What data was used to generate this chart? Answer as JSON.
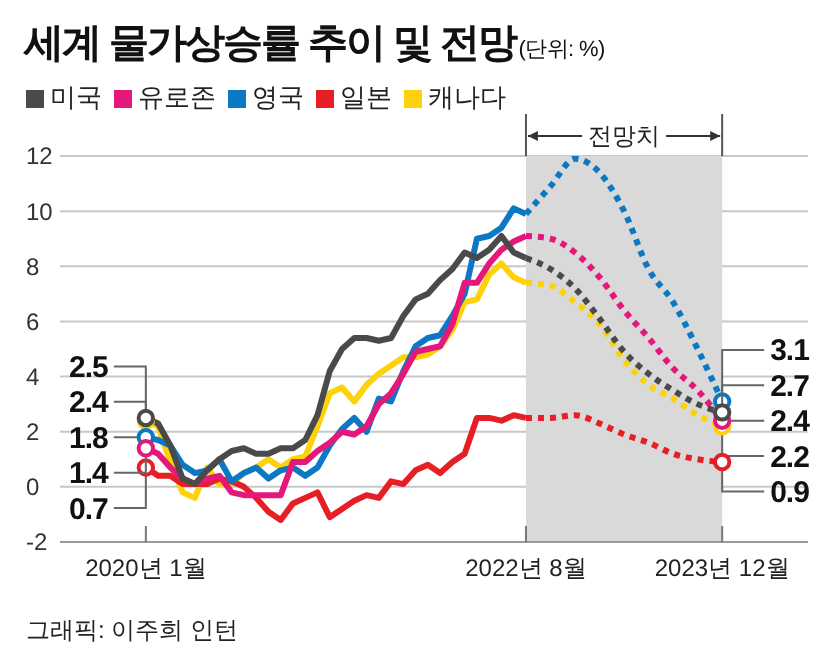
{
  "chart_data": {
    "type": "line",
    "title": "세계 물가상승률 추이 및 전망",
    "subtitle": "(단위: %)",
    "annotations": [
      "그래픽: 이주희 인턴"
    ],
    "xlim": [
      "2019-06",
      "2024-07"
    ],
    "xticks": [
      {
        "value": "2020-01",
        "label": "2020년 1월"
      },
      {
        "value": "2022-08",
        "label": "2022년 8월"
      },
      {
        "value": "2023-12",
        "label": "2023년 12월"
      }
    ],
    "ylim": [
      -2,
      12
    ],
    "yticks": [
      -2,
      0,
      2,
      4,
      6,
      8,
      10,
      12
    ],
    "grid": "y",
    "legend": "top left",
    "bands": [
      {
        "axis": "x",
        "from": "2022-08",
        "to": "2023-12",
        "label": "전망치",
        "color": "#d9d9d9"
      }
    ],
    "x": [
      "2020-01",
      "2020-02",
      "2020-03",
      "2020-04",
      "2020-05",
      "2020-06",
      "2020-07",
      "2020-08",
      "2020-09",
      "2020-10",
      "2020-11",
      "2020-12",
      "2021-01",
      "2021-02",
      "2021-03",
      "2021-04",
      "2021-05",
      "2021-06",
      "2021-07",
      "2021-08",
      "2021-09",
      "2021-10",
      "2021-11",
      "2021-12",
      "2022-01",
      "2022-02",
      "2022-03",
      "2022-04",
      "2022-05",
      "2022-06",
      "2022-07",
      "2022-08"
    ],
    "series": [
      {
        "name": "미국",
        "color": "#4a4a4a",
        "values": [
          2.5,
          2.3,
          1.5,
          0.3,
          0.1,
          0.6,
          1.0,
          1.3,
          1.4,
          1.2,
          1.2,
          1.4,
          1.4,
          1.7,
          2.6,
          4.2,
          5.0,
          5.4,
          5.4,
          5.3,
          5.4,
          6.2,
          6.8,
          7.0,
          7.5,
          7.9,
          8.5,
          8.3,
          8.6,
          9.1,
          8.5,
          8.3
        ],
        "value_labels": [
          "2.5",
          null,
          null,
          null,
          null,
          null,
          null,
          null,
          null,
          null,
          null,
          null,
          null,
          null,
          null,
          null,
          null,
          null,
          null,
          null,
          null,
          null,
          null,
          null,
          null,
          null,
          null,
          null,
          null,
          null,
          null,
          null
        ]
      },
      {
        "name": "유로존",
        "color": "#e5177b",
        "values": [
          1.4,
          1.2,
          0.7,
          0.3,
          0.1,
          0.3,
          0.4,
          -0.2,
          -0.3,
          -0.3,
          -0.3,
          -0.3,
          0.9,
          0.9,
          1.3,
          1.6,
          2.0,
          1.9,
          2.2,
          3.0,
          3.4,
          4.1,
          4.9,
          5.0,
          5.1,
          5.9,
          7.4,
          7.4,
          8.1,
          8.6,
          8.9,
          9.1
        ],
        "value_labels": [
          "1.4",
          null,
          null,
          null,
          null,
          null,
          null,
          null,
          null,
          null,
          null,
          null,
          null,
          null,
          null,
          null,
          null,
          null,
          null,
          null,
          null,
          null,
          null,
          null,
          null,
          null,
          null,
          null,
          null,
          null,
          null,
          null
        ]
      },
      {
        "name": "영국",
        "color": "#0a78c2",
        "values": [
          1.8,
          1.7,
          1.5,
          0.8,
          0.5,
          0.6,
          1.0,
          0.2,
          0.5,
          0.7,
          0.3,
          0.6,
          0.7,
          0.4,
          0.7,
          1.5,
          2.1,
          2.5,
          2.0,
          3.2,
          3.1,
          4.2,
          5.1,
          5.4,
          5.5,
          6.2,
          7.0,
          9.0,
          9.1,
          9.4,
          10.1,
          9.9
        ],
        "value_labels": [
          "1.8",
          null,
          null,
          null,
          null,
          null,
          null,
          null,
          null,
          null,
          null,
          null,
          null,
          null,
          null,
          null,
          null,
          null,
          null,
          null,
          null,
          null,
          null,
          null,
          null,
          null,
          null,
          null,
          null,
          null,
          null,
          null
        ]
      },
      {
        "name": "일본",
        "color": "#e61f26",
        "values": [
          0.7,
          0.4,
          0.4,
          0.1,
          0.1,
          0.1,
          0.3,
          0.2,
          0.0,
          -0.4,
          -0.9,
          -1.2,
          -0.6,
          -0.4,
          -0.2,
          -1.1,
          -0.8,
          -0.5,
          -0.3,
          -0.4,
          0.2,
          0.1,
          0.6,
          0.8,
          0.5,
          0.9,
          1.2,
          2.5,
          2.5,
          2.4,
          2.6,
          2.5
        ],
        "value_labels": [
          "0.7",
          null,
          null,
          null,
          null,
          null,
          null,
          null,
          null,
          null,
          null,
          null,
          null,
          null,
          null,
          null,
          null,
          null,
          null,
          null,
          null,
          null,
          null,
          null,
          null,
          null,
          null,
          null,
          null,
          null,
          null,
          null
        ]
      },
      {
        "name": "캐나다",
        "color": "#fdd20a",
        "values": [
          2.4,
          2.2,
          0.9,
          -0.2,
          -0.4,
          0.7,
          0.1,
          0.1,
          0.5,
          0.7,
          1.0,
          0.7,
          1.0,
          1.1,
          2.2,
          3.4,
          3.6,
          3.1,
          3.7,
          4.1,
          4.4,
          4.7,
          4.7,
          4.8,
          5.1,
          5.7,
          6.7,
          6.8,
          7.7,
          8.1,
          7.6,
          7.4
        ],
        "value_labels": [
          "2.4",
          null,
          null,
          null,
          null,
          null,
          null,
          null,
          null,
          null,
          null,
          null,
          null,
          null,
          null,
          null,
          null,
          null,
          null,
          null,
          null,
          null,
          null,
          null,
          null,
          null,
          null,
          null,
          null,
          null,
          null,
          null
        ]
      },
      {
        "color": "#4a4a4a",
        "line_style": "dotted",
        "x": [
          "2022-08",
          "2022-10",
          "2022-12",
          "2023-02",
          "2023-04",
          "2023-06",
          "2023-08",
          "2023-10",
          "2023-12"
        ],
        "values": [
          8.3,
          7.9,
          7.2,
          6.1,
          4.9,
          4.1,
          3.5,
          3.0,
          2.7
        ],
        "value_labels": [
          null,
          null,
          null,
          null,
          null,
          null,
          null,
          null,
          "2.7"
        ]
      },
      {
        "color": "#e5177b",
        "line_style": "dotted",
        "x": [
          "2022-08",
          "2022-10",
          "2022-12",
          "2023-02",
          "2023-04",
          "2023-06",
          "2023-08",
          "2023-10",
          "2023-12"
        ],
        "values": [
          9.1,
          9.0,
          8.5,
          7.6,
          6.4,
          5.4,
          4.3,
          3.5,
          2.4
        ],
        "value_labels": [
          null,
          null,
          null,
          null,
          null,
          null,
          null,
          null,
          "2.4"
        ]
      },
      {
        "color": "#0a78c2",
        "line_style": "dotted",
        "x": [
          "2022-08",
          "2022-10",
          "2022-12",
          "2023-02",
          "2023-04",
          "2023-06",
          "2023-08",
          "2023-10",
          "2023-12"
        ],
        "values": [
          9.9,
          10.9,
          11.9,
          11.4,
          10.0,
          7.9,
          6.7,
          5.0,
          3.1
        ],
        "value_labels": [
          null,
          null,
          null,
          null,
          null,
          null,
          null,
          null,
          "3.1"
        ]
      },
      {
        "color": "#e61f26",
        "line_style": "dotted",
        "x": [
          "2022-08",
          "2022-10",
          "2022-12",
          "2023-02",
          "2023-04",
          "2023-06",
          "2023-08",
          "2023-10",
          "2023-12"
        ],
        "values": [
          2.5,
          2.5,
          2.6,
          2.3,
          1.9,
          1.6,
          1.2,
          1.0,
          0.9
        ],
        "value_labels": [
          null,
          null,
          null,
          null,
          null,
          null,
          null,
          null,
          "0.9"
        ]
      },
      {
        "color": "#fdd20a",
        "line_style": "dotted",
        "x": [
          "2022-08",
          "2022-10",
          "2022-12",
          "2023-02",
          "2023-04",
          "2023-06",
          "2023-08",
          "2023-10",
          "2023-12"
        ],
        "values": [
          7.4,
          7.3,
          6.7,
          5.9,
          4.6,
          3.7,
          3.2,
          2.6,
          2.2
        ],
        "value_labels": [
          null,
          null,
          null,
          null,
          null,
          null,
          null,
          null,
          "2.2"
        ]
      }
    ]
  }
}
